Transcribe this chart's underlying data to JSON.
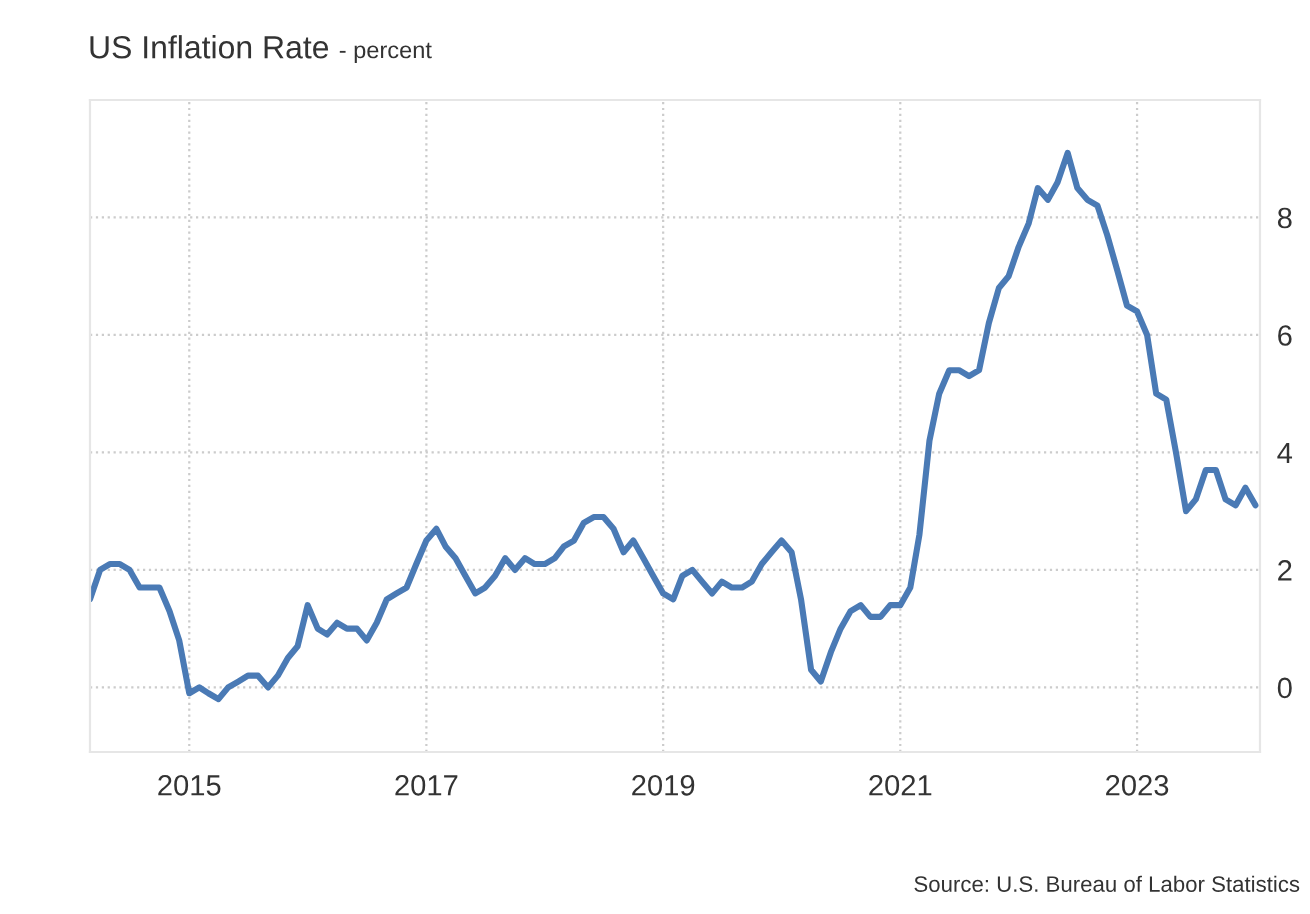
{
  "chart_data": {
    "type": "line",
    "title": "US Inflation Rate",
    "subtitle": "- percent",
    "x": [
      "2014-03",
      "2014-04",
      "2014-05",
      "2014-06",
      "2014-07",
      "2014-08",
      "2014-09",
      "2014-10",
      "2014-11",
      "2014-12",
      "2015-01",
      "2015-02",
      "2015-03",
      "2015-04",
      "2015-05",
      "2015-06",
      "2015-07",
      "2015-08",
      "2015-09",
      "2015-10",
      "2015-11",
      "2015-12",
      "2016-01",
      "2016-02",
      "2016-03",
      "2016-04",
      "2016-05",
      "2016-06",
      "2016-07",
      "2016-08",
      "2016-09",
      "2016-10",
      "2016-11",
      "2016-12",
      "2017-01",
      "2017-02",
      "2017-03",
      "2017-04",
      "2017-05",
      "2017-06",
      "2017-07",
      "2017-08",
      "2017-09",
      "2017-10",
      "2017-11",
      "2017-12",
      "2018-01",
      "2018-02",
      "2018-03",
      "2018-04",
      "2018-05",
      "2018-06",
      "2018-07",
      "2018-08",
      "2018-09",
      "2018-10",
      "2018-11",
      "2018-12",
      "2019-01",
      "2019-02",
      "2019-03",
      "2019-04",
      "2019-05",
      "2019-06",
      "2019-07",
      "2019-08",
      "2019-09",
      "2019-10",
      "2019-11",
      "2019-12",
      "2020-01",
      "2020-02",
      "2020-03",
      "2020-04",
      "2020-05",
      "2020-06",
      "2020-07",
      "2020-08",
      "2020-09",
      "2020-10",
      "2020-11",
      "2020-12",
      "2021-01",
      "2021-02",
      "2021-03",
      "2021-04",
      "2021-05",
      "2021-06",
      "2021-07",
      "2021-08",
      "2021-09",
      "2021-10",
      "2021-11",
      "2021-12",
      "2022-01",
      "2022-02",
      "2022-03",
      "2022-04",
      "2022-05",
      "2022-06",
      "2022-07",
      "2022-08",
      "2022-09",
      "2022-10",
      "2022-11",
      "2022-12",
      "2023-01",
      "2023-02",
      "2023-03",
      "2023-04",
      "2023-05",
      "2023-06",
      "2023-07",
      "2023-08",
      "2023-09",
      "2023-10",
      "2023-11",
      "2023-12",
      "2024-01"
    ],
    "series": [
      {
        "color": "#4a7ab5",
        "values": [
          1.5,
          2.0,
          2.1,
          2.1,
          2.0,
          1.7,
          1.7,
          1.7,
          1.3,
          0.8,
          -0.1,
          0.0,
          -0.1,
          -0.2,
          0.0,
          0.1,
          0.2,
          0.2,
          0.0,
          0.2,
          0.5,
          0.7,
          1.4,
          1.0,
          0.9,
          1.1,
          1.0,
          1.0,
          0.8,
          1.1,
          1.5,
          1.6,
          1.7,
          2.1,
          2.5,
          2.7,
          2.4,
          2.2,
          1.9,
          1.6,
          1.7,
          1.9,
          2.2,
          2.0,
          2.2,
          2.1,
          2.1,
          2.2,
          2.4,
          2.5,
          2.8,
          2.9,
          2.9,
          2.7,
          2.3,
          2.5,
          2.2,
          1.9,
          1.6,
          1.5,
          1.9,
          2.0,
          1.8,
          1.6,
          1.8,
          1.7,
          1.7,
          1.8,
          2.1,
          2.3,
          2.5,
          2.3,
          1.5,
          0.3,
          0.1,
          0.6,
          1.0,
          1.3,
          1.4,
          1.2,
          1.2,
          1.4,
          1.4,
          1.7,
          2.6,
          4.2,
          5.0,
          5.4,
          5.4,
          5.3,
          5.4,
          6.2,
          6.8,
          7.0,
          7.5,
          7.9,
          8.5,
          8.3,
          8.6,
          9.1,
          8.5,
          8.3,
          8.2,
          7.7,
          7.1,
          6.5,
          6.4,
          6.0,
          5.0,
          4.9,
          4.0,
          3.0,
          3.2,
          3.7,
          3.7,
          3.2,
          3.1,
          3.4,
          3.1
        ]
      }
    ],
    "xlim": [
      "2014-03-01",
      "2024-01-15"
    ],
    "xticks": [
      "2015",
      "2017",
      "2019",
      "2021",
      "2023"
    ],
    "ylim": [
      -1.1,
      10
    ],
    "yticks": [
      0,
      2,
      4,
      6,
      8
    ],
    "grid": true,
    "legend": false,
    "marker": "none",
    "line_style": "solid",
    "annotations": [
      "Source: U.S. Bureau of Labor Statistics"
    ]
  }
}
